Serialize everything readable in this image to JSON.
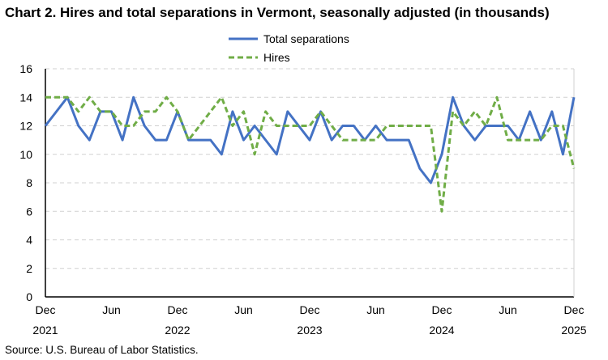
{
  "chart_data": {
    "type": "line",
    "title": "Chart 2. Hires and total separations in Vermont, seasonally adjusted (in thousands)",
    "source": "Source: U.S. Bureau of Labor Statistics.",
    "x_start": "2021-12",
    "x_end": "2025-12",
    "x_ticks": [
      {
        "month": 0,
        "label": "Dec",
        "year": "2021"
      },
      {
        "month": 6,
        "label": "Jun",
        "year": ""
      },
      {
        "month": 12,
        "label": "Dec",
        "year": "2022"
      },
      {
        "month": 18,
        "label": "Jun",
        "year": ""
      },
      {
        "month": 24,
        "label": "Dec",
        "year": "2023"
      },
      {
        "month": 30,
        "label": "Jun",
        "year": ""
      },
      {
        "month": 36,
        "label": "Dec",
        "year": "2024"
      },
      {
        "month": 42,
        "label": "Jun",
        "year": ""
      },
      {
        "month": 48,
        "label": "Dec",
        "year": "2025"
      }
    ],
    "ylim": [
      0,
      16
    ],
    "y_ticks": [
      0,
      2,
      4,
      6,
      8,
      10,
      12,
      14,
      16
    ],
    "grid": "horizontal dashed",
    "legend_placement": "top-center",
    "series": [
      {
        "name": "Total separations",
        "color": "#4472C4",
        "style": "solid",
        "values": [
          12,
          13,
          14,
          12,
          11,
          13,
          13,
          11,
          14,
          12,
          11,
          11,
          13,
          11,
          11,
          11,
          10,
          13,
          11,
          12,
          11,
          10,
          13,
          12,
          11,
          13,
          11,
          12,
          12,
          11,
          12,
          11,
          11,
          11,
          9,
          8,
          10,
          14,
          12,
          11,
          12,
          12,
          12,
          11,
          13,
          11,
          13,
          10,
          14
        ]
      },
      {
        "name": "Hires",
        "color": "#70AD47",
        "style": "dashed",
        "values": [
          14,
          14,
          14,
          13,
          14,
          13,
          13,
          12,
          12,
          13,
          13,
          14,
          13,
          11,
          12,
          13,
          14,
          12,
          13,
          10,
          13,
          12,
          12,
          12,
          12,
          13,
          12,
          11,
          11,
          11,
          11,
          12,
          12,
          12,
          12,
          12,
          6,
          13,
          12,
          13,
          12,
          14,
          11,
          11,
          11,
          11,
          12,
          12,
          9
        ]
      }
    ]
  }
}
